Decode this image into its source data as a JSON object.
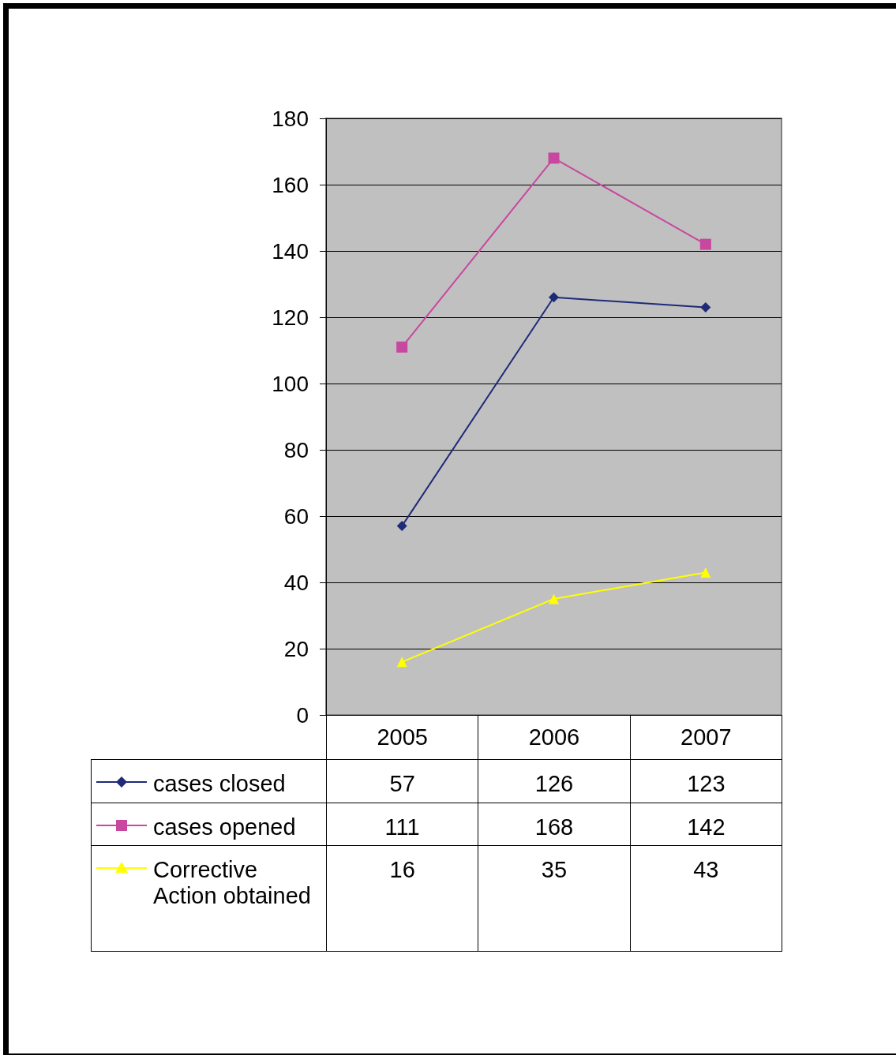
{
  "chart_data": {
    "type": "line",
    "categories": [
      "2005",
      "2006",
      "2007"
    ],
    "series": [
      {
        "name": "cases closed",
        "color": "#1f2a78",
        "marker": "diamond",
        "values": [
          57,
          126,
          123
        ]
      },
      {
        "name": "cases opened",
        "color": "#c8479f",
        "marker": "square",
        "values": [
          111,
          168,
          142
        ]
      },
      {
        "name": "Corrective Action obtained",
        "color": "#ffff00",
        "marker": "triangle",
        "values": [
          16,
          35,
          43
        ]
      }
    ],
    "ylim": [
      0,
      180
    ],
    "yticks": [
      0,
      20,
      40,
      60,
      80,
      100,
      120,
      140,
      160,
      180
    ],
    "grid": "y",
    "legend": "bottom",
    "data_labels": true
  }
}
